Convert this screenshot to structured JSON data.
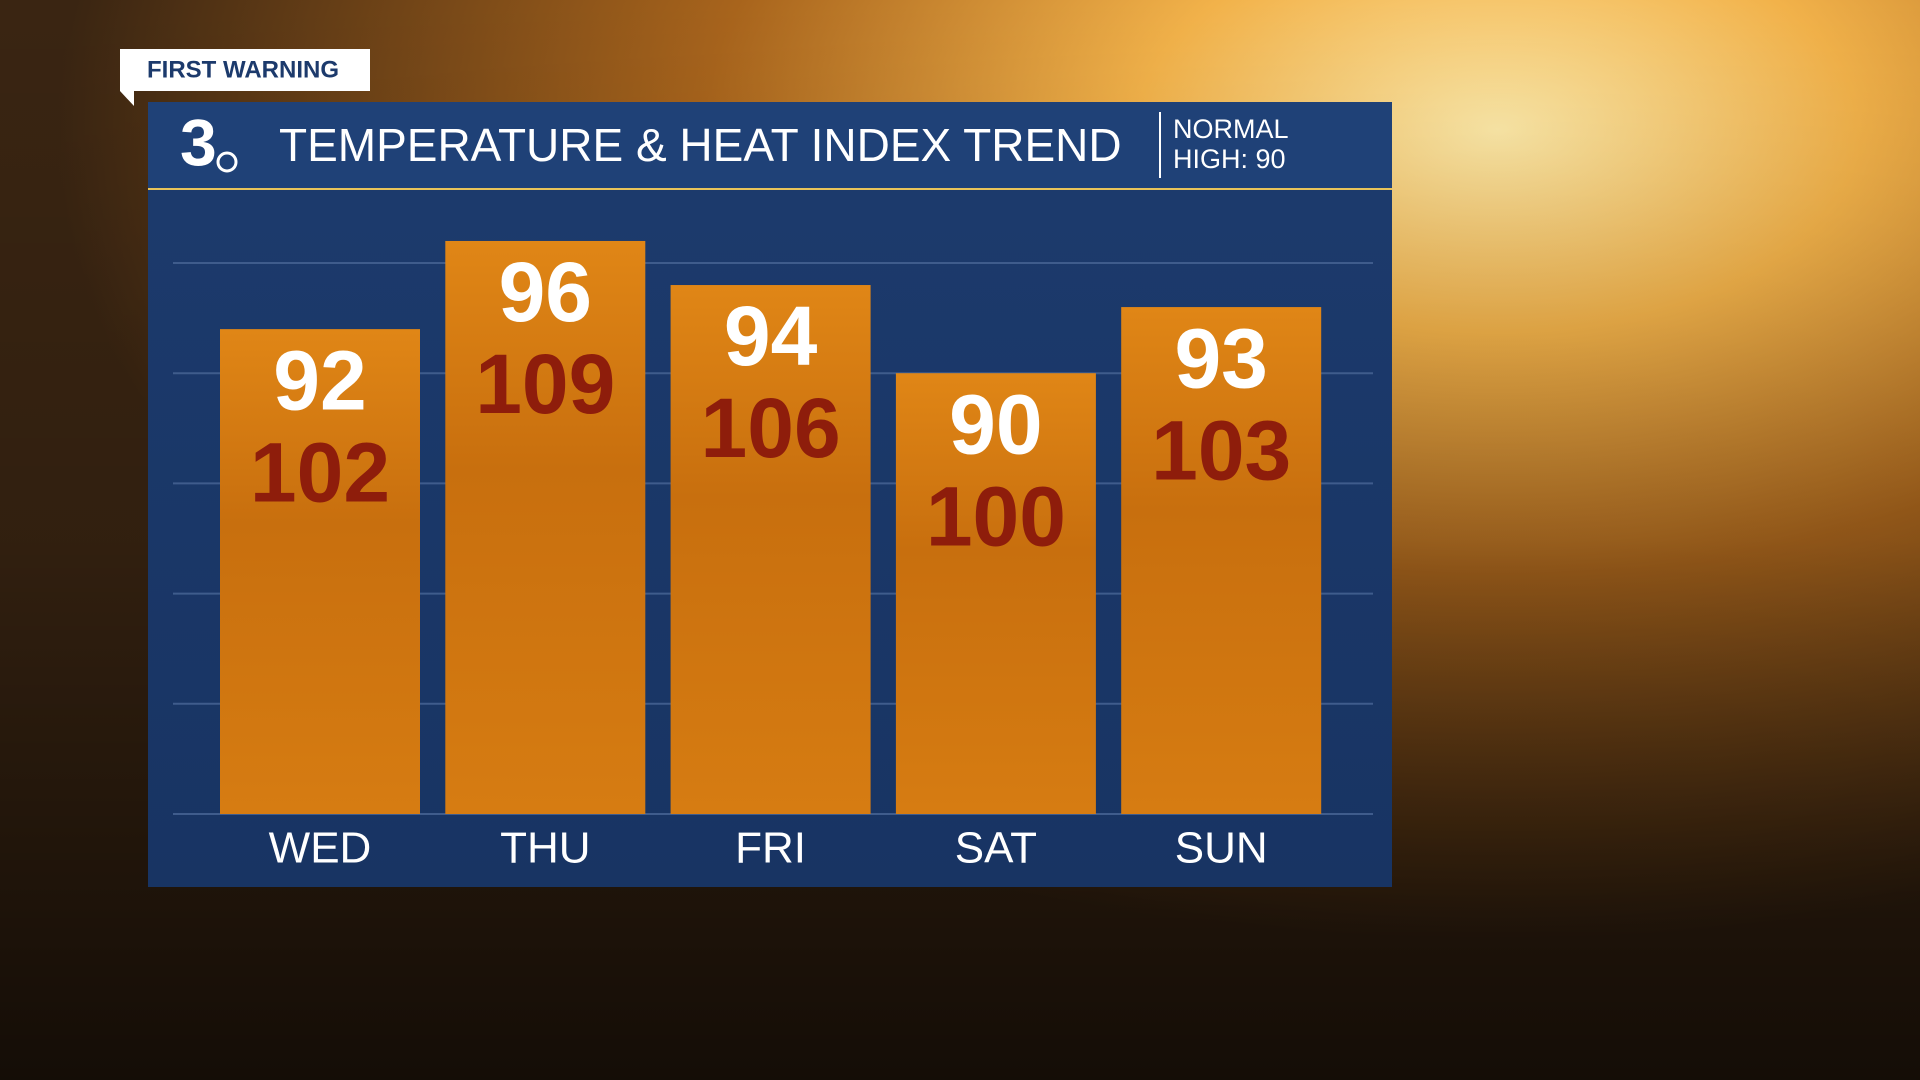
{
  "chart_data": {
    "type": "bar",
    "tag": "FIRST WARNING",
    "brand": "3",
    "title": "TEMPERATURE & HEAT INDEX TREND",
    "annotation": [
      "NORMAL",
      "HIGH: 90"
    ],
    "categories": [
      "WED",
      "THU",
      "FRI",
      "SAT",
      "SUN"
    ],
    "values": [
      92,
      96,
      94,
      90,
      93
    ],
    "heat_index": [
      102,
      109,
      106,
      100,
      103
    ],
    "color": "#d57b10",
    "ylim": [
      70,
      98
    ],
    "yticks": [
      70,
      75,
      80,
      85,
      90,
      95
    ],
    "grid": true
  }
}
